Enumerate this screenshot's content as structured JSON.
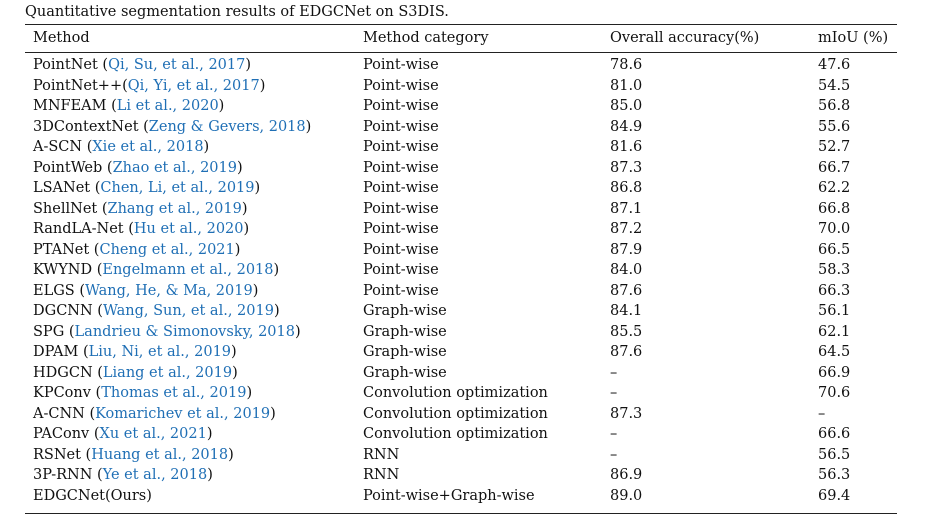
{
  "caption": "Quantitative segmentation results of EDGCNet on S3DIS.",
  "colors": {
    "citation": "#1f6fb5",
    "text": "#111111"
  },
  "headers": [
    "Method",
    "Method category",
    "Overall accuracy(%)",
    "mIoU (%)"
  ],
  "rows": [
    {
      "name": "PointNet (",
      "cite": "Qi, Su, et al., 2017",
      "close": ")",
      "category": "Point-wise",
      "oa": "78.6",
      "miou": "47.6"
    },
    {
      "name": "PointNet++(",
      "cite": "Qi, Yi, et al., 2017",
      "close": ")",
      "category": "Point-wise",
      "oa": "81.0",
      "miou": "54.5"
    },
    {
      "name": "MNFEAM (",
      "cite": "Li et al., 2020",
      "close": ")",
      "category": "Point-wise",
      "oa": "85.0",
      "miou": "56.8"
    },
    {
      "name": "3DContextNet (",
      "cite": "Zeng & Gevers, 2018",
      "close": ")",
      "category": "Point-wise",
      "oa": "84.9",
      "miou": "55.6"
    },
    {
      "name": "A-SCN (",
      "cite": "Xie et al., 2018",
      "close": ")",
      "category": "Point-wise",
      "oa": "81.6",
      "miou": "52.7"
    },
    {
      "name": "PointWeb (",
      "cite": "Zhao et al., 2019",
      "close": ")",
      "category": "Point-wise",
      "oa": "87.3",
      "miou": "66.7"
    },
    {
      "name": "LSANet (",
      "cite": "Chen, Li, et al., 2019",
      "close": ")",
      "category": "Point-wise",
      "oa": "86.8",
      "miou": "62.2"
    },
    {
      "name": "ShellNet (",
      "cite": "Zhang et al., 2019",
      "close": ")",
      "category": "Point-wise",
      "oa": "87.1",
      "miou": "66.8"
    },
    {
      "name": "RandLA-Net (",
      "cite": "Hu et al., 2020",
      "close": ")",
      "category": "Point-wise",
      "oa": "87.2",
      "miou": "70.0"
    },
    {
      "name": "PTANet (",
      "cite": "Cheng et al., 2021",
      "close": ")",
      "category": "Point-wise",
      "oa": "87.9",
      "miou": "66.5"
    },
    {
      "name": "KWYND (",
      "cite": "Engelmann et al., 2018",
      "close": ")",
      "category": "Point-wise",
      "oa": "84.0",
      "miou": "58.3"
    },
    {
      "name": "ELGS (",
      "cite": "Wang, He, & Ma, 2019",
      "close": ")",
      "category": "Point-wise",
      "oa": "87.6",
      "miou": "66.3"
    },
    {
      "name": "DGCNN (",
      "cite": "Wang, Sun, et al., 2019",
      "close": ")",
      "category": "Graph-wise",
      "oa": "84.1",
      "miou": "56.1"
    },
    {
      "name": "SPG (",
      "cite": "Landrieu & Simonovsky, 2018",
      "close": ")",
      "category": "Graph-wise",
      "oa": "85.5",
      "miou": "62.1"
    },
    {
      "name": "DPAM (",
      "cite": "Liu, Ni, et al., 2019",
      "close": ")",
      "category": "Graph-wise",
      "oa": "87.6",
      "miou": "64.5"
    },
    {
      "name": "HDGCN (",
      "cite": "Liang et al., 2019",
      "close": ")",
      "category": "Graph-wise",
      "oa": "–",
      "miou": "66.9"
    },
    {
      "name": "KPConv (",
      "cite": "Thomas et al., 2019",
      "close": ")",
      "category": "Convolution optimization",
      "oa": "–",
      "miou": "70.6",
      "miou_bold": true
    },
    {
      "name": "A-CNN (",
      "cite": "Komarichev et al., 2019",
      "close": ")",
      "category": "Convolution optimization",
      "oa": "87.3",
      "miou": "–"
    },
    {
      "name": "PAConv (",
      "cite": "Xu et al., 2021",
      "close": ")",
      "category": "Convolution optimization",
      "oa": "–",
      "miou": "66.6"
    },
    {
      "name": "RSNet (",
      "cite": "Huang et al., 2018",
      "close": ")",
      "category": "RNN",
      "oa": "–",
      "miou": "56.5"
    },
    {
      "name": "3P-RNN (",
      "cite": "Ye et al., 2018",
      "close": ")",
      "category": "RNN",
      "oa": "86.9",
      "miou": "56.3"
    },
    {
      "name": "EDGCNet(Ours)",
      "cite": "",
      "close": "",
      "category": "Point-wise+Graph-wise",
      "oa": "89.0",
      "oa_bold": true,
      "miou": "69.4"
    }
  ]
}
